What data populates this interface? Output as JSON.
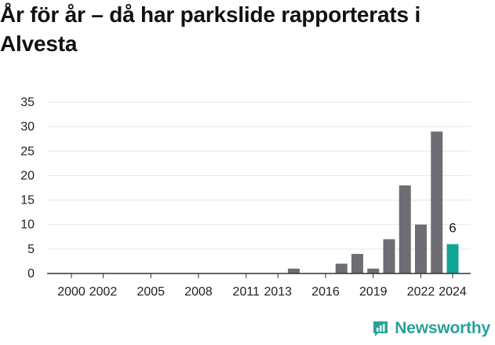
{
  "title": "År för år – då har parkslide rapporterats i Alvesta",
  "brand": {
    "name": "Newsworthy"
  },
  "colors": {
    "bar": "#6e6d73",
    "highlight": "#11a597",
    "grid": "#e6e6e6",
    "axis": "#333333",
    "brand": "#2aa198"
  },
  "chart_data": {
    "type": "bar",
    "title": "År för år – då har parkslide rapporterats i Alvesta",
    "xlabel": "",
    "ylabel": "",
    "ylim": [
      0,
      35
    ],
    "yticks": [
      0,
      5,
      10,
      15,
      20,
      25,
      30,
      35
    ],
    "x": [
      2000,
      2001,
      2002,
      2003,
      2004,
      2005,
      2006,
      2007,
      2008,
      2009,
      2010,
      2011,
      2012,
      2013,
      2014,
      2015,
      2016,
      2017,
      2018,
      2019,
      2020,
      2021,
      2022,
      2023,
      2024
    ],
    "values": [
      0,
      0,
      0,
      0,
      0,
      0,
      0,
      0,
      0,
      0,
      0,
      0,
      0,
      0,
      1,
      0,
      0,
      2,
      4,
      1,
      7,
      18,
      10,
      29,
      6
    ],
    "xticks": [
      2000,
      2002,
      2005,
      2008,
      2011,
      2013,
      2016,
      2019,
      2022,
      2024
    ],
    "highlight": {
      "x": 2024,
      "label": "6"
    },
    "grid": true,
    "legend": "none"
  }
}
